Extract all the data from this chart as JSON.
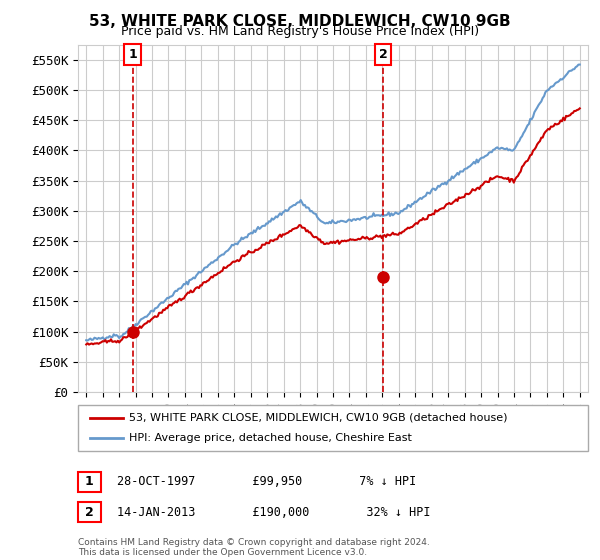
{
  "title": "53, WHITE PARK CLOSE, MIDDLEWICH, CW10 9GB",
  "subtitle": "Price paid vs. HM Land Registry's House Price Index (HPI)",
  "ylim": [
    0,
    575000
  ],
  "yticks": [
    0,
    50000,
    100000,
    150000,
    200000,
    250000,
    300000,
    350000,
    400000,
    450000,
    500000,
    550000
  ],
  "ytick_labels": [
    "£0",
    "£50K",
    "£100K",
    "£150K",
    "£200K",
    "£250K",
    "£300K",
    "£350K",
    "£400K",
    "£450K",
    "£500K",
    "£550K"
  ],
  "sale1_date": 1997.82,
  "sale1_price": 99950,
  "sale1_label": "1",
  "sale2_date": 2013.04,
  "sale2_price": 190000,
  "sale2_label": "2",
  "sale1_info": "28-OCT-1997        £99,950        7% ↓ HPI",
  "sale2_info": "14-JAN-2013        £190,000        32% ↓ HPI",
  "red_line_color": "#cc0000",
  "blue_line_color": "#6699cc",
  "background_color": "#ffffff",
  "grid_color": "#cccccc",
  "legend_label_red": "53, WHITE PARK CLOSE, MIDDLEWICH, CW10 9GB (detached house)",
  "legend_label_blue": "HPI: Average price, detached house, Cheshire East",
  "footer": "Contains HM Land Registry data © Crown copyright and database right 2024.\nThis data is licensed under the Open Government Licence v3.0."
}
